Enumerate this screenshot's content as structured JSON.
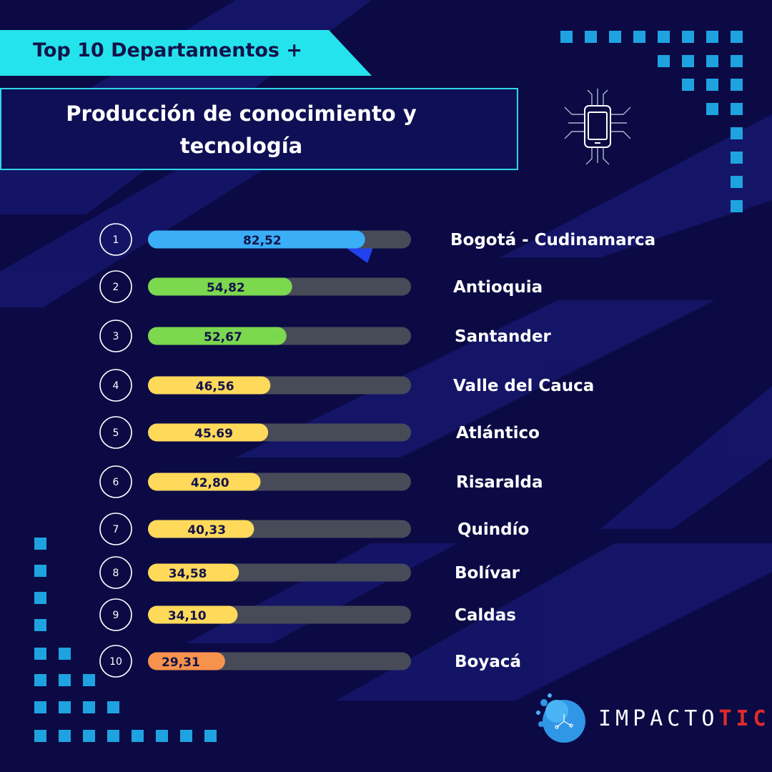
{
  "header": {
    "title": "Top 10 Departamentos +",
    "subtitle_line1": "Producción de conocimiento y",
    "subtitle_line2": "tecnología"
  },
  "icons": {
    "header_icon": "smartphone-circuit-icon",
    "logo_icon": "splash-globe-icon"
  },
  "logo": {
    "part1": "IMPACTO",
    "part2": "TIC"
  },
  "colors": {
    "background": "#0b0a45",
    "accent": "#25e3ec",
    "track": "#474b58",
    "blue": "#3aaef6",
    "green": "#7bd84f",
    "yellow": "#ffd95a",
    "orange": "#f7924c",
    "logo_red": "#e02b2b"
  },
  "chart_data": {
    "type": "bar",
    "orientation": "horizontal",
    "title": "Top 10 Departamentos +",
    "subtitle": "Producción de conocimiento y tecnología",
    "xlim": [
      0,
      100
    ],
    "grid": false,
    "categories": [
      "Bogotá - Cudinamarca",
      "Antioquia",
      "Santander",
      "Valle del Cauca",
      "Atlántico",
      "Risaralda",
      "Quindío",
      "Bolívar",
      "Caldas",
      "Boyacá"
    ],
    "ranks": [
      "1",
      "2",
      "3",
      "4",
      "5",
      "6",
      "7",
      "8",
      "9",
      "10"
    ],
    "values": [
      82.52,
      54.82,
      52.67,
      46.56,
      45.69,
      42.8,
      40.33,
      34.58,
      34.1,
      29.31
    ],
    "value_labels": [
      "82,52",
      "54,82",
      "52,67",
      "46,56",
      "45.69",
      "42,80",
      "40,33",
      "34,58",
      "34,10",
      "29,31"
    ],
    "bar_colors": [
      "#3aaef6",
      "#7bd84f",
      "#7bd84f",
      "#ffd95a",
      "#ffd95a",
      "#ffd95a",
      "#ffd95a",
      "#ffd95a",
      "#ffd95a",
      "#f7924c"
    ]
  }
}
